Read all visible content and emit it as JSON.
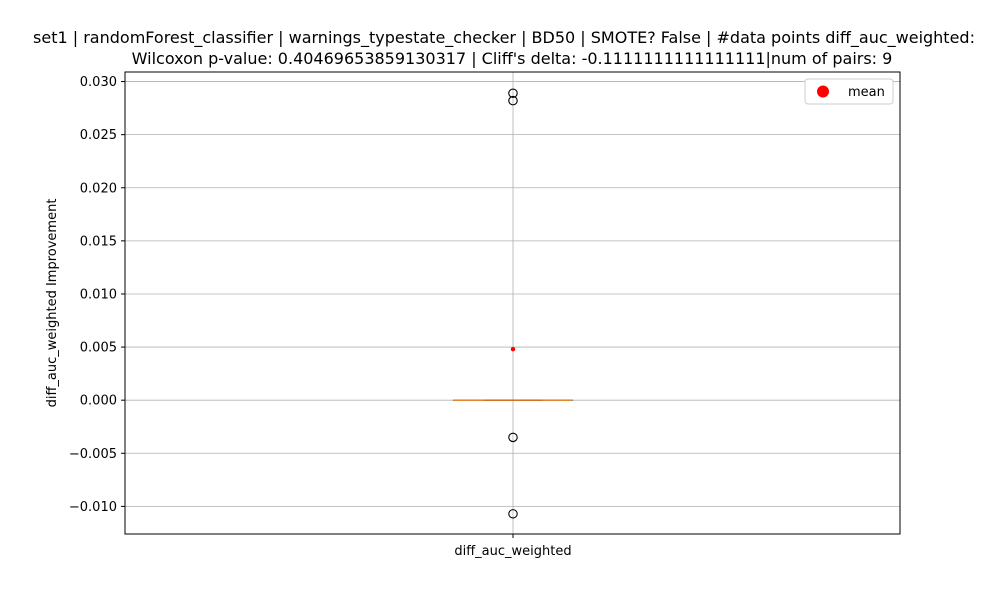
{
  "chart_data": {
    "type": "box",
    "title_line1": "set1 | randomForest_classifier | warnings_typestate_checker | BD50 | SMOTE? False | #data points diff_auc_weighted:",
    "title_line2": "Wilcoxon p-value: 0.40469653859130317 | Cliff's delta: -0.1111111111111111|num of pairs: 9",
    "xlabel": "",
    "ylabel": "diff_auc_weighted Improvement",
    "categories": [
      "diff_auc_weighted"
    ],
    "ylim": [
      -0.0126,
      0.0309
    ],
    "yticks": [
      -0.01,
      -0.005,
      0.0,
      0.005,
      0.01,
      0.015,
      0.02,
      0.025,
      0.03
    ],
    "ytick_labels": [
      "−0.010",
      "−0.005",
      "0.000",
      "0.005",
      "0.010",
      "0.015",
      "0.020",
      "0.025",
      "0.030"
    ],
    "grid": true,
    "legend": {
      "position": "upper right",
      "entries": [
        {
          "label": "mean",
          "color": "#ff0000"
        }
      ]
    },
    "box": {
      "q1": 0.0,
      "median": 0.0,
      "q3": 0.0,
      "whisker_low": 0.0,
      "whisker_high": 0.0,
      "mean": 0.0048,
      "outliers": [
        0.0289,
        0.0282,
        -0.0035,
        -0.0107
      ]
    },
    "colors": {
      "median": "#ff7f0e",
      "mean": "#ff0000",
      "grid": "#b0b0b0"
    }
  }
}
